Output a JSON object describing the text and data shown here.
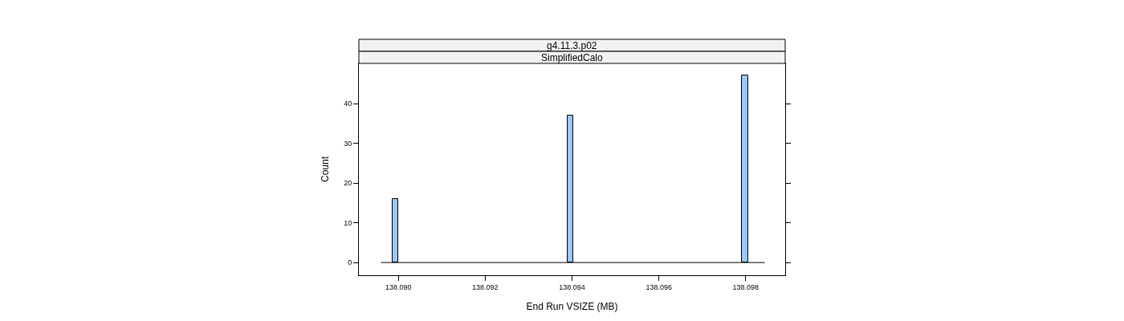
{
  "chart_data": {
    "type": "histogram",
    "title": "g4.11.3.p02",
    "subtitle": "SimplifiedCalo",
    "xlabel": "End Run VSIZE (MB)",
    "ylabel": "Count",
    "bins": [
      138.0896,
      138.08973,
      138.08986,
      138.08999,
      138.09012,
      138.09025,
      138.09038,
      138.09051,
      138.09064,
      138.09077,
      138.0909,
      138.09103,
      138.09116,
      138.09129,
      138.09142,
      138.09155,
      138.09168,
      138.09181,
      138.09194,
      138.09207,
      138.0922,
      138.09233,
      138.09246,
      138.09259,
      138.09272,
      138.09285,
      138.09298,
      138.09311,
      138.09324,
      138.09337,
      138.0935,
      138.09363,
      138.09376,
      138.09389,
      138.09402,
      138.09415,
      138.09428,
      138.09441,
      138.09454,
      138.09467,
      138.0948,
      138.09493,
      138.09506,
      138.09519,
      138.09532,
      138.09545,
      138.09558,
      138.09571,
      138.09584,
      138.09597,
      138.0961,
      138.09623,
      138.09636,
      138.09649,
      138.09662,
      138.09675,
      138.09688,
      138.09701,
      138.09714,
      138.09727,
      138.0974,
      138.09753,
      138.09766,
      138.09779,
      138.09792,
      138.09805,
      138.09818,
      138.09831,
      138.09844
    ],
    "values": [
      0,
      0,
      16,
      0,
      0,
      0,
      0,
      0,
      0,
      0,
      0,
      0,
      0,
      0,
      0,
      0,
      0,
      0,
      0,
      0,
      0,
      0,
      0,
      0,
      0,
      0,
      0,
      0,
      0,
      0,
      0,
      0,
      0,
      37,
      0,
      0,
      0,
      0,
      0,
      0,
      0,
      0,
      0,
      0,
      0,
      0,
      0,
      0,
      0,
      0,
      0,
      0,
      0,
      0,
      0,
      0,
      0,
      0,
      0,
      0,
      0,
      0,
      0,
      0,
      47,
      0,
      0,
      0
    ],
    "color": "#99c8f5",
    "xlim": [
      138.08909,
      138.09891
    ],
    "xticks": [
      {
        "value": 138.09,
        "label": "138.090"
      },
      {
        "value": 138.092,
        "label": "138.092"
      },
      {
        "value": 138.094,
        "label": "138.094"
      },
      {
        "value": 138.096,
        "label": "138.096"
      },
      {
        "value": 138.098,
        "label": "138.098"
      }
    ],
    "ylim": [
      -3.2,
      50.1
    ],
    "yticks": [
      0,
      10,
      20,
      30,
      40
    ]
  }
}
